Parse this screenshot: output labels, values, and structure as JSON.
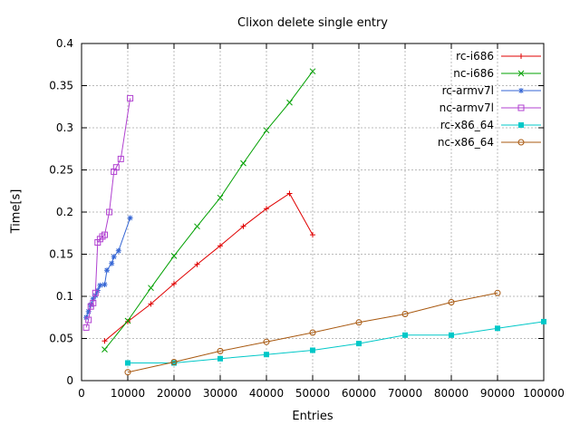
{
  "chart_data": {
    "type": "line",
    "title": "Clixon delete single entry",
    "xlabel": "Entries",
    "ylabel": "Time[s]",
    "xlim": [
      0,
      100000
    ],
    "ylim": [
      0,
      0.4
    ],
    "grid": true,
    "legend_position": "top-right-inside",
    "background_color": "#ffffff",
    "border_color": "#000000",
    "grid_color": "#bbbbbb",
    "text_color": "#000000",
    "x_ticks": [
      0,
      10000,
      20000,
      30000,
      40000,
      50000,
      60000,
      70000,
      80000,
      90000,
      100000
    ],
    "x_tick_labels": [
      "0",
      "10000",
      "20000",
      "30000",
      "40000",
      "50000",
      "60000",
      "70000",
      "80000",
      "90000",
      "100000"
    ],
    "y_ticks": [
      0,
      0.05,
      0.1,
      0.15,
      0.2,
      0.25,
      0.3,
      0.35,
      0.4
    ],
    "y_tick_labels": [
      "0",
      "0.05",
      "0.1",
      "0.15",
      "0.2",
      "0.25",
      "0.3",
      "0.35",
      "0.4"
    ],
    "series": [
      {
        "name": "rc-i686",
        "color": "#e00000",
        "marker": "plus",
        "points": [
          [
            5000,
            0.047
          ],
          [
            10000,
            0.07
          ],
          [
            15000,
            0.091
          ],
          [
            20000,
            0.115
          ],
          [
            25000,
            0.138
          ],
          [
            30000,
            0.16
          ],
          [
            35000,
            0.183
          ],
          [
            40000,
            0.204
          ],
          [
            45000,
            0.222
          ],
          [
            50000,
            0.173
          ]
        ]
      },
      {
        "name": "nc-i686",
        "color": "#00a000",
        "marker": "cross",
        "points": [
          [
            5000,
            0.037
          ],
          [
            10000,
            0.071
          ],
          [
            15000,
            0.11
          ],
          [
            20000,
            0.148
          ],
          [
            25000,
            0.183
          ],
          [
            30000,
            0.217
          ],
          [
            35000,
            0.258
          ],
          [
            40000,
            0.297
          ],
          [
            45000,
            0.33
          ],
          [
            50000,
            0.367
          ]
        ]
      },
      {
        "name": "rc-armv7l",
        "color": "#3465d4",
        "marker": "asterisk",
        "points": [
          [
            1000,
            0.075
          ],
          [
            1500,
            0.082
          ],
          [
            2000,
            0.09
          ],
          [
            2500,
            0.097
          ],
          [
            3000,
            0.101
          ],
          [
            3500,
            0.107
          ],
          [
            4000,
            0.113
          ],
          [
            5000,
            0.114
          ],
          [
            5500,
            0.131
          ],
          [
            6500,
            0.139
          ],
          [
            7000,
            0.147
          ],
          [
            8000,
            0.154
          ],
          [
            10500,
            0.193
          ]
        ]
      },
      {
        "name": "nc-armv7l",
        "color": "#b040d0",
        "marker": "square-open",
        "points": [
          [
            1000,
            0.063
          ],
          [
            1500,
            0.072
          ],
          [
            2000,
            0.088
          ],
          [
            2500,
            0.092
          ],
          [
            3000,
            0.104
          ],
          [
            3500,
            0.164
          ],
          [
            4000,
            0.168
          ],
          [
            4500,
            0.171
          ],
          [
            5000,
            0.173
          ],
          [
            6000,
            0.2
          ],
          [
            7000,
            0.248
          ],
          [
            7500,
            0.253
          ],
          [
            8500,
            0.263
          ],
          [
            10500,
            0.335
          ]
        ]
      },
      {
        "name": "rc-x86_64",
        "color": "#00c8c8",
        "marker": "square-filled",
        "points": [
          [
            10000,
            0.021
          ],
          [
            20000,
            0.021
          ],
          [
            30000,
            0.026
          ],
          [
            40000,
            0.031
          ],
          [
            50000,
            0.036
          ],
          [
            60000,
            0.044
          ],
          [
            70000,
            0.054
          ],
          [
            80000,
            0.054
          ],
          [
            90000,
            0.062
          ],
          [
            100000,
            0.07
          ]
        ]
      },
      {
        "name": "nc-x86_64",
        "color": "#a8580f",
        "marker": "circle-open",
        "points": [
          [
            10000,
            0.01
          ],
          [
            20000,
            0.022
          ],
          [
            30000,
            0.035
          ],
          [
            40000,
            0.046
          ],
          [
            50000,
            0.057
          ],
          [
            60000,
            0.069
          ],
          [
            70000,
            0.079
          ],
          [
            80000,
            0.093
          ],
          [
            90000,
            0.104
          ]
        ]
      }
    ]
  }
}
